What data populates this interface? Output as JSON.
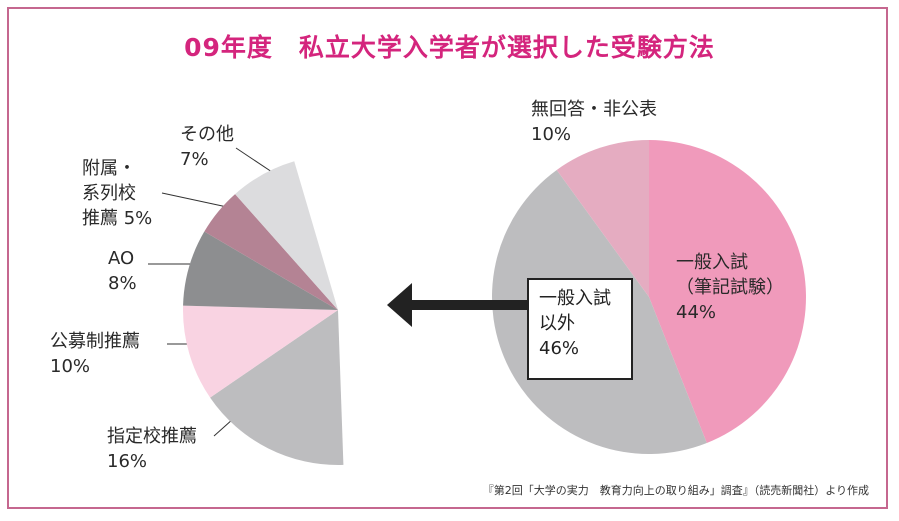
{
  "title": "09年度　私立大学入学者が選択した受験方法",
  "source": "『第2回「大学の実力　教育力向上の取り組み」調査』（読売新聞社）より作成",
  "chart_data": [
    {
      "type": "pie",
      "slices": [
        {
          "label": "一般入試",
          "sublabel": "（筆記試験）",
          "value": 44,
          "value_label": "44%",
          "color": "#f09abb"
        },
        {
          "label": "一般入試",
          "sublabel": "以外",
          "value": 46,
          "value_label": "46%",
          "color": "#bdbdbf"
        },
        {
          "label": "無回答・非公表",
          "sublabel": "",
          "value": 10,
          "value_label": "10%",
          "color": "#e5acc1"
        }
      ]
    },
    {
      "type": "pie",
      "slices": [
        {
          "label": "指定校推薦",
          "sublabel": "",
          "value": 16,
          "value_label": "16%",
          "color": "#bdbdbf"
        },
        {
          "label": "公募制推薦",
          "sublabel": "",
          "value": 10,
          "value_label": "10%",
          "color": "#f9d3e2"
        },
        {
          "label": "AO",
          "sublabel": "",
          "value": 8,
          "value_label": "8%",
          "color": "#8d8e90"
        },
        {
          "label": "附属・",
          "sublabel": "系列校",
          "line3": "推薦",
          "value": 5,
          "value_label": "5%",
          "color": "#b48394"
        },
        {
          "label": "その他",
          "sublabel": "",
          "value": 7,
          "value_label": "7%",
          "color": "#dcdcde"
        }
      ]
    }
  ]
}
